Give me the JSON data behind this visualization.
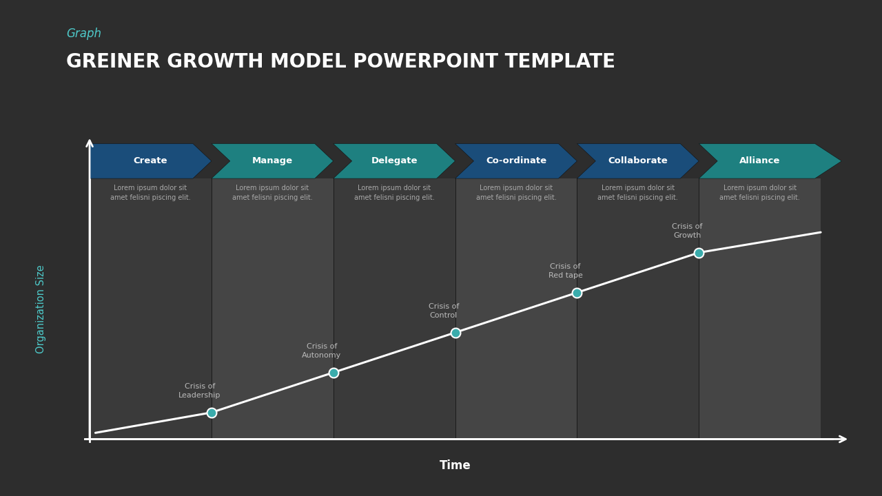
{
  "bg_color": "#2d2d2d",
  "title_label": "Graph",
  "title_label_color": "#4ec9c9",
  "title_label_fontsize": 12,
  "title": "GREINER GROWTH MODEL POWERPOINT TEMPLATE",
  "title_color": "#ffffff",
  "title_fontsize": 20,
  "phases": [
    "Create",
    "Manage",
    "Delegate",
    "Co-ordinate",
    "Collaborate",
    "Alliance"
  ],
  "arrow_colors": [
    "#1a4d7a",
    "#1e8080",
    "#1e8080",
    "#1a4d7a",
    "#1a4d7a",
    "#1e8080"
  ],
  "band_colors": [
    "#3a3a3a",
    "#454545",
    "#3a3a3a",
    "#454545",
    "#3a3a3a",
    "#454545"
  ],
  "crisis_labels": [
    "Crisis of\nLeadership",
    "Crisis of\nAutonomy",
    "Crisis of\nControl",
    "Crisis of\nRed tape",
    "Crisis of\nGrowth"
  ],
  "lorem_text": "Lorem ipsum dolor sit\namet felisni piscing elit.",
  "ylabel": "Organization Size",
  "ylabel_color": "#4ec9c9",
  "xlabel": "Time",
  "xlabel_color": "#ffffff",
  "axis_color": "#ffffff",
  "line_color": "#ffffff",
  "dot_color": "#3aacac",
  "dot_size": 100,
  "line_width": 2.2,
  "text_color": "#aaaaaa",
  "crisis_text_color": "#bbbbbb"
}
